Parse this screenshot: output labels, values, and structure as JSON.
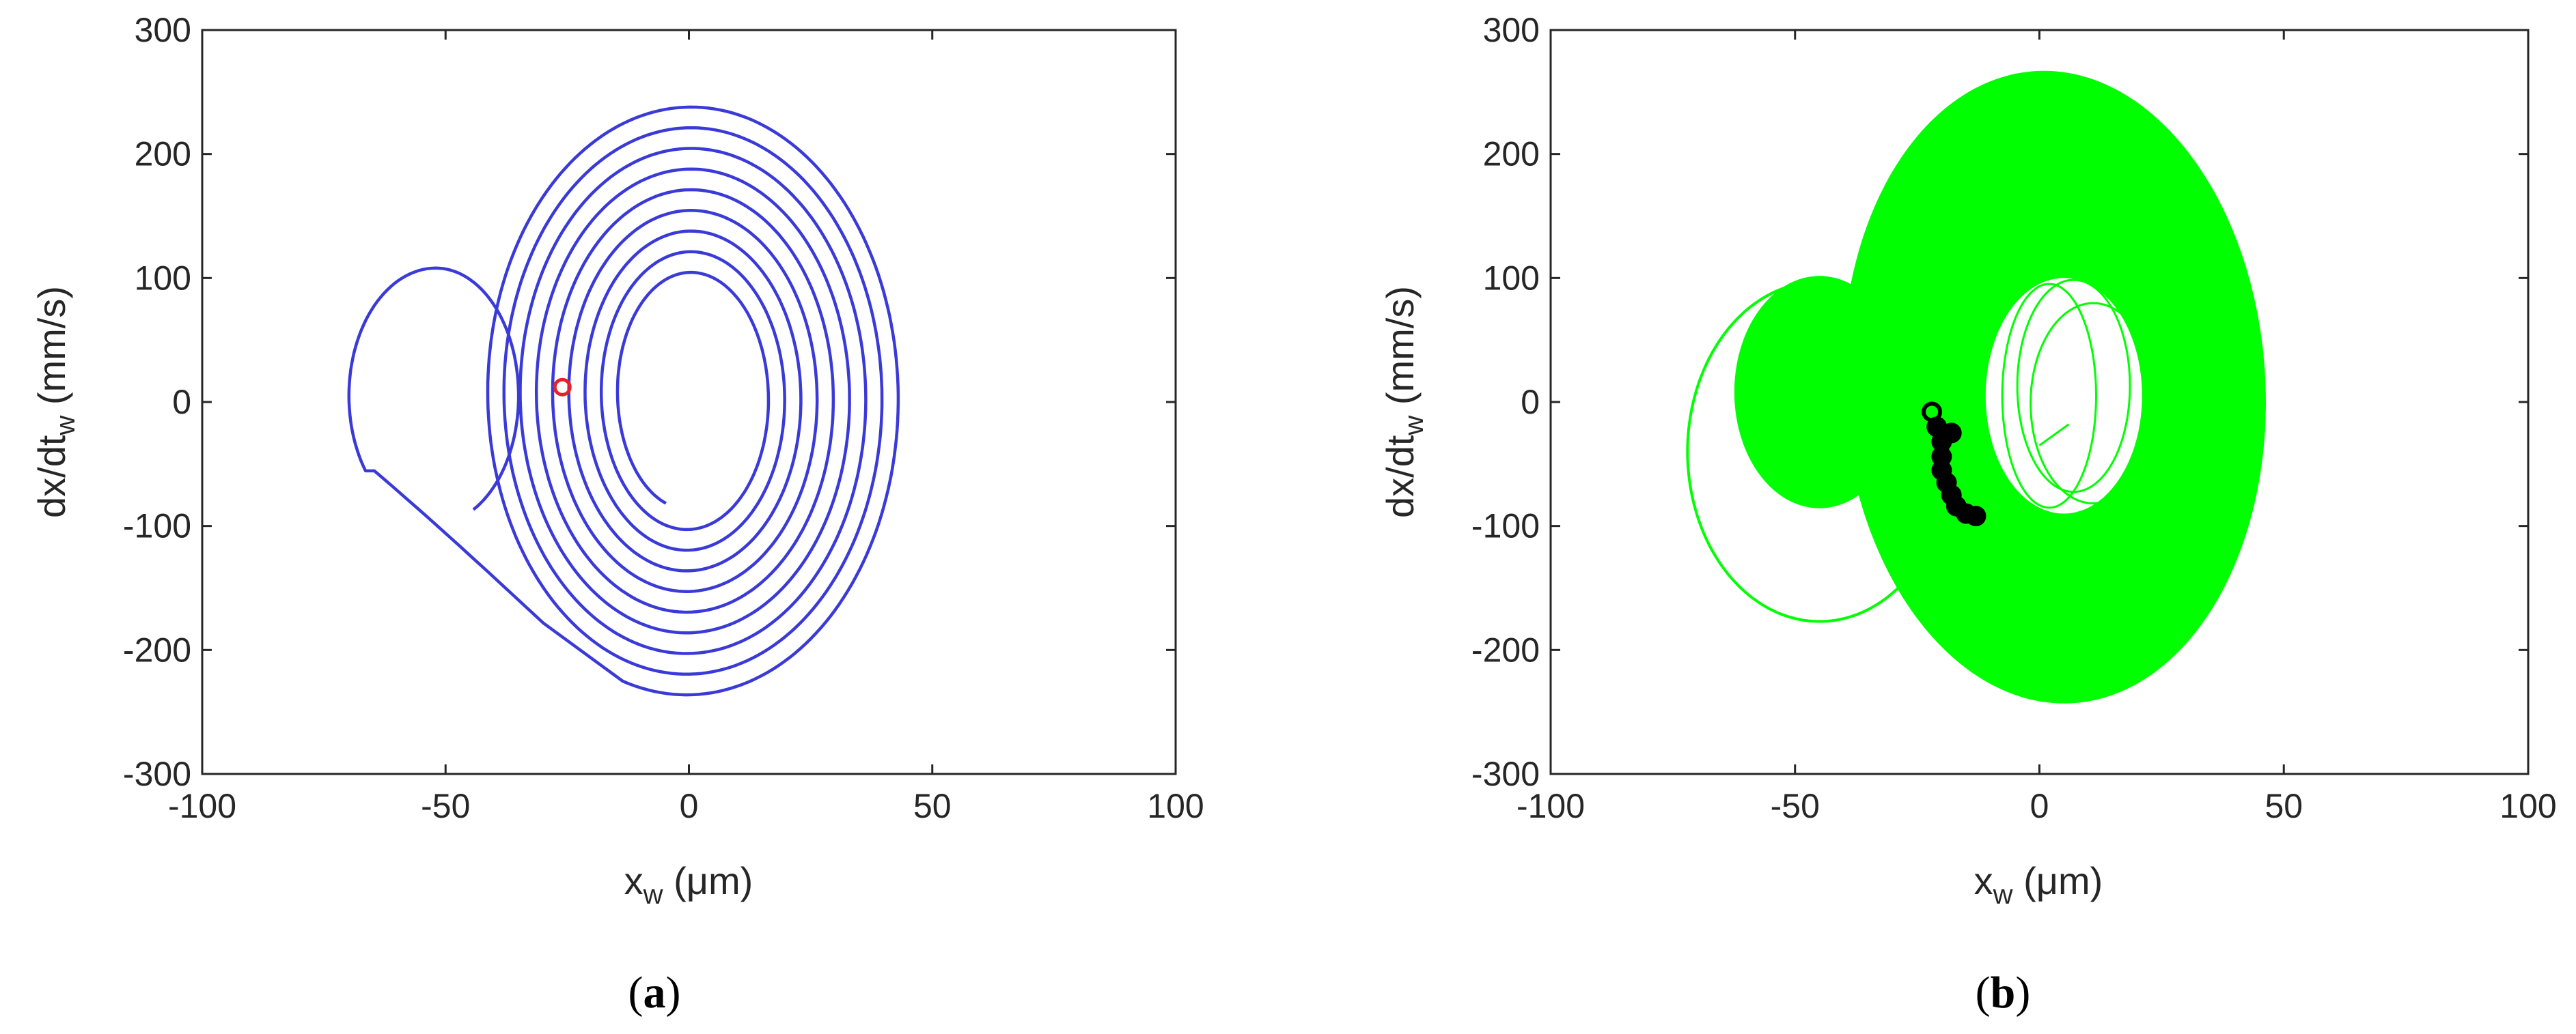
{
  "colors": {
    "axis": "#262626",
    "panel_a_trajectory": "#3a3ad8",
    "panel_a_marker": "#e8202a",
    "panel_b_trajectory": "#00ff00",
    "panel_b_markers": "#000000"
  },
  "panels": [
    {
      "caption_open": "(",
      "caption_letter": "a",
      "caption_close": ")"
    },
    {
      "caption_open": "(",
      "caption_letter": "b",
      "caption_close": ")"
    }
  ],
  "chart_data": [
    {
      "type": "line",
      "panel": "a",
      "xlabel_main": "x",
      "xlabel_sub": "w",
      "xlabel_unit": " (μm)",
      "ylabel_main": "dx/dt",
      "ylabel_sub": "w",
      "ylabel_unit": " (mm/s)",
      "xlim": [
        -100,
        100
      ],
      "ylim": [
        -300,
        300
      ],
      "xticks": [
        -100,
        -50,
        0,
        50,
        100
      ],
      "yticks": [
        -300,
        -200,
        -100,
        0,
        100,
        200,
        300
      ],
      "xtick_labels": [
        "-100",
        "-50",
        "0",
        "50",
        "100"
      ],
      "ytick_labels": [
        "-300",
        "-200",
        "-100",
        "0",
        "100",
        "200",
        "300"
      ],
      "grid": false,
      "series": [
        {
          "style": "spiral-trajectory",
          "initial_loop": {
            "center_x": -52,
            "center_y": 5,
            "x_radius": 17,
            "y_radius": 103,
            "tip_x": -44,
            "tip_y": -95
          },
          "spiral": {
            "center_x": 0,
            "center_y": 5,
            "inner_x_radius": 14,
            "inner_y_radius": 92,
            "outer_x_radius": 44,
            "outer_y_radius": 242,
            "turns": 9
          },
          "transient_bottom_y": -178
        }
      ],
      "markers": [
        {
          "x": -26,
          "y": 12,
          "shape": "circle-open"
        }
      ]
    },
    {
      "type": "line",
      "panel": "b",
      "xlabel_main": "x",
      "xlabel_sub": "w",
      "xlabel_unit": " (μm)",
      "ylabel_main": "dx/dt",
      "ylabel_sub": "w",
      "ylabel_unit": " (mm/s)",
      "xlim": [
        -100,
        100
      ],
      "ylim": [
        -300,
        300
      ],
      "xticks": [
        -100,
        -50,
        0,
        50,
        100
      ],
      "yticks": [
        -300,
        -200,
        -100,
        0,
        100,
        200,
        300
      ],
      "xtick_labels": [
        "-100",
        "-50",
        "0",
        "50",
        "100"
      ],
      "ytick_labels": [
        "-300",
        "-200",
        "-100",
        "0",
        "100",
        "200",
        "300"
      ],
      "grid": false,
      "series": [
        {
          "style": "chaotic-band",
          "main_band": {
            "center_x": 0,
            "center_y": 12,
            "x_min": -40,
            "x_max": 46,
            "y_min": -242,
            "y_max": 266
          },
          "hole": {
            "center_x": 5,
            "center_y": 5,
            "x_radius": 16,
            "y_radius": 95
          },
          "left_ring": {
            "center_x": -45,
            "center_y": 8,
            "x_radius": 17,
            "y_radius": 92
          },
          "outer_loop": {
            "center_x": -45,
            "center_y": -40,
            "x_radius": 27,
            "y_radius": 137
          }
        }
      ],
      "markers": [
        {
          "x": -22,
          "y": -8
        },
        {
          "x": -21,
          "y": -20
        },
        {
          "x": -20,
          "y": -32
        },
        {
          "x": -20,
          "y": -44
        },
        {
          "x": -20,
          "y": -55
        },
        {
          "x": -19,
          "y": -65
        },
        {
          "x": -18,
          "y": -75
        },
        {
          "x": -17,
          "y": -84
        },
        {
          "x": -15,
          "y": -90
        },
        {
          "x": -13,
          "y": -92
        },
        {
          "x": -18,
          "y": -25
        }
      ]
    }
  ]
}
